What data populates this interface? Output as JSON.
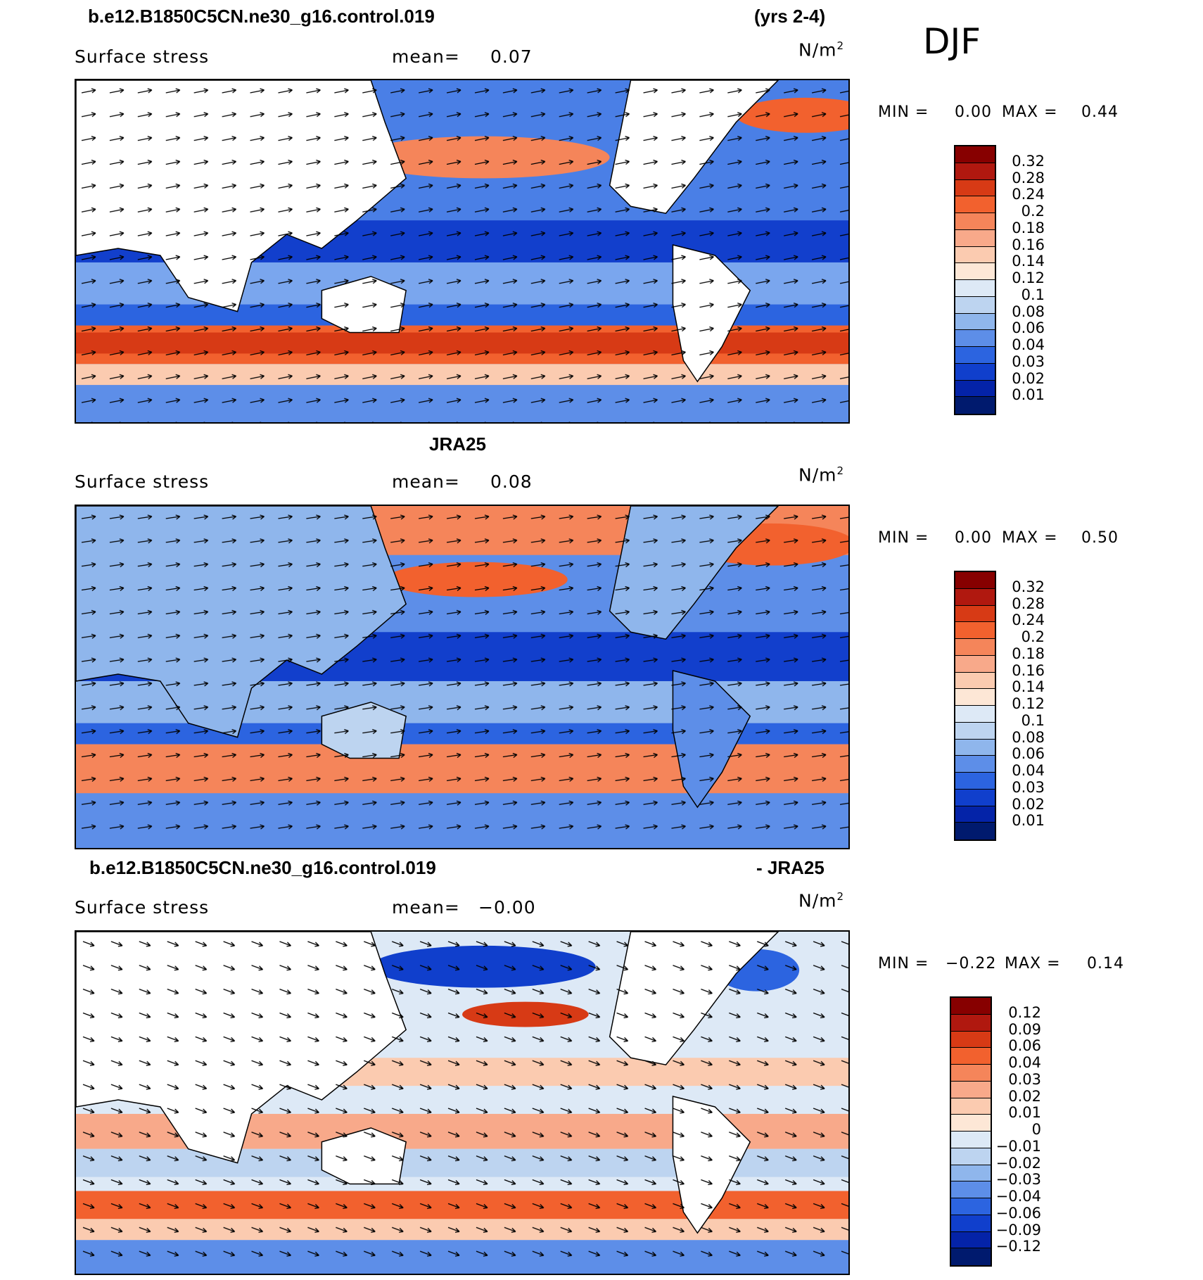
{
  "season": "DJF",
  "panels": [
    {
      "title_left": "b.e12.B1850C5CN.ne30_g16.control.019",
      "title_right": "(yrs 2-4)",
      "variable": "Surface stress",
      "mean_label": "mean=",
      "mean_value": "0.07",
      "units_base": "N/m",
      "units_exp": "2",
      "min_label": "MIN =",
      "min_value": "0.00",
      "max_label": "MAX =",
      "max_value": "0.44",
      "colorbar_levels": [
        "0.32",
        "0.28",
        "0.24",
        "0.2",
        "0.18",
        "0.16",
        "0.14",
        "0.12",
        "0.1",
        "0.08",
        "0.06",
        "0.04",
        "0.03",
        "0.02",
        "0.01"
      ],
      "colorbar_colors": [
        "#870000",
        "#b0180f",
        "#d73a15",
        "#f2612e",
        "#f5855a",
        "#f8a98a",
        "#fbcbb0",
        "#fde7d6",
        "#dde9f6",
        "#bdd4f0",
        "#8fb6ec",
        "#5d8ee8",
        "#2c64e0",
        "#103fcc",
        "#0423a8",
        "#001a6e"
      ]
    },
    {
      "title_center": "JRA25",
      "variable": "Surface stress",
      "mean_label": "mean=",
      "mean_value": "0.08",
      "units_base": "N/m",
      "units_exp": "2",
      "min_label": "MIN =",
      "min_value": "0.00",
      "max_label": "MAX =",
      "max_value": "0.50",
      "colorbar_levels": [
        "0.32",
        "0.28",
        "0.24",
        "0.2",
        "0.18",
        "0.16",
        "0.14",
        "0.12",
        "0.1",
        "0.08",
        "0.06",
        "0.04",
        "0.03",
        "0.02",
        "0.01"
      ],
      "colorbar_colors": [
        "#870000",
        "#b0180f",
        "#d73a15",
        "#f2612e",
        "#f5855a",
        "#f8a98a",
        "#fbcbb0",
        "#fde7d6",
        "#dde9f6",
        "#bdd4f0",
        "#8fb6ec",
        "#5d8ee8",
        "#2c64e0",
        "#103fcc",
        "#0423a8",
        "#001a6e"
      ]
    },
    {
      "title_left": "b.e12.B1850C5CN.ne30_g16.control.019",
      "title_right": "- JRA25",
      "variable": "Surface stress",
      "mean_label": "mean=",
      "mean_value": "−0.00",
      "units_base": "N/m",
      "units_exp": "2",
      "min_label": "MIN =",
      "min_value": "−0.22",
      "max_label": "MAX =",
      "max_value": "0.14",
      "colorbar_levels": [
        "0.12",
        "0.09",
        "0.06",
        "0.04",
        "0.03",
        "0.02",
        "0.01",
        "0",
        "−0.01",
        "−0.02",
        "−0.03",
        "−0.04",
        "−0.06",
        "−0.09",
        "−0.12"
      ],
      "colorbar_colors": [
        "#870000",
        "#b0180f",
        "#d73a15",
        "#f2612e",
        "#f5855a",
        "#f8a98a",
        "#fbcbb0",
        "#fde7d6",
        "#dde9f6",
        "#bdd4f0",
        "#8fb6ec",
        "#5d8ee8",
        "#2c64e0",
        "#103fcc",
        "#0423a8",
        "#001a6e"
      ]
    }
  ]
}
